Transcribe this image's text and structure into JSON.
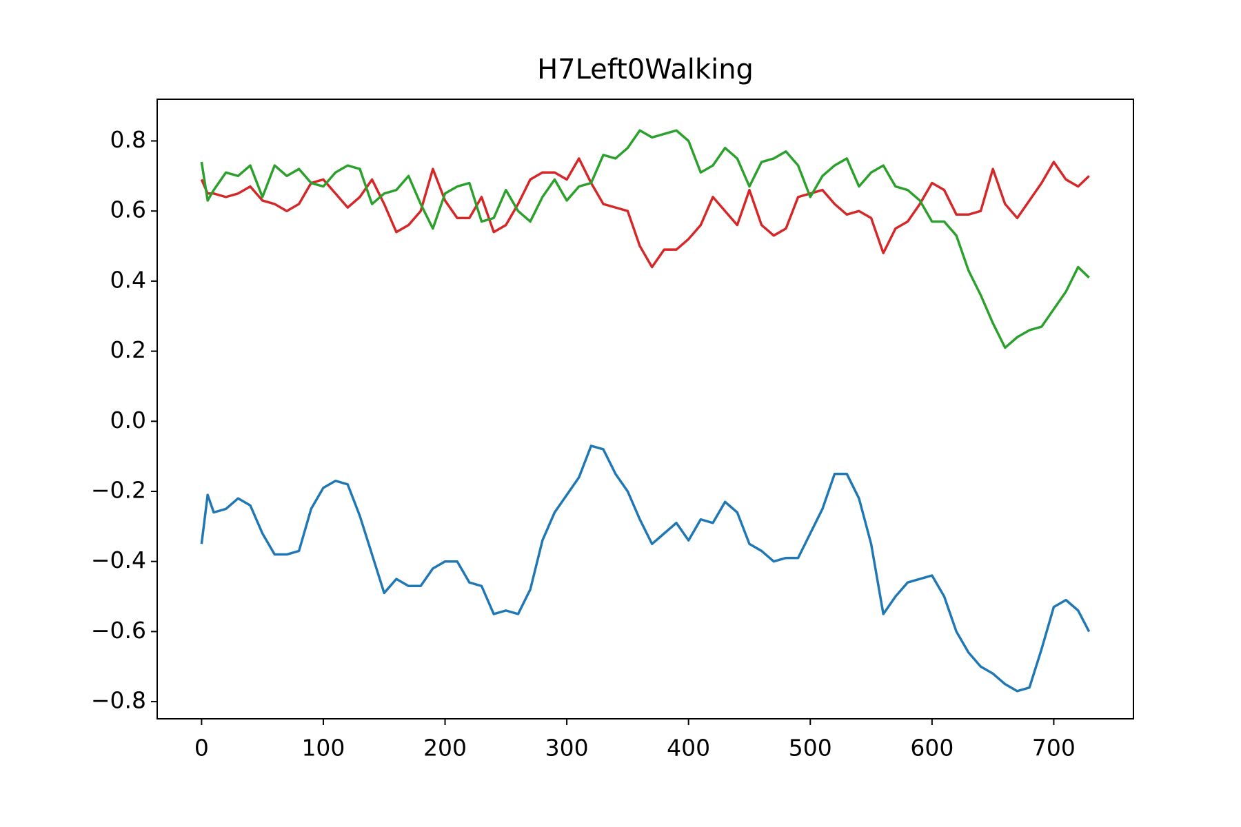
{
  "chart_data": {
    "type": "line",
    "title": "H7Left0Walking",
    "x": [
      0,
      5,
      10,
      20,
      30,
      40,
      50,
      60,
      70,
      80,
      90,
      100,
      110,
      120,
      130,
      140,
      150,
      160,
      170,
      180,
      190,
      200,
      210,
      220,
      230,
      240,
      250,
      260,
      270,
      280,
      290,
      300,
      310,
      320,
      330,
      340,
      350,
      360,
      370,
      380,
      390,
      400,
      410,
      420,
      430,
      440,
      450,
      460,
      470,
      480,
      490,
      500,
      510,
      520,
      530,
      540,
      550,
      560,
      570,
      580,
      590,
      600,
      610,
      620,
      630,
      640,
      650,
      660,
      670,
      680,
      690,
      700,
      710,
      720,
      729
    ],
    "series": [
      {
        "color": "#1f77b4",
        "values": [
          -0.35,
          -0.21,
          -0.26,
          -0.25,
          -0.22,
          -0.24,
          -0.32,
          -0.38,
          -0.38,
          -0.37,
          -0.25,
          -0.19,
          -0.17,
          -0.18,
          -0.27,
          -0.38,
          -0.49,
          -0.45,
          -0.47,
          -0.47,
          -0.42,
          -0.4,
          -0.4,
          -0.46,
          -0.47,
          -0.55,
          -0.54,
          -0.55,
          -0.48,
          -0.34,
          -0.26,
          -0.21,
          -0.16,
          -0.07,
          -0.08,
          -0.15,
          -0.2,
          -0.28,
          -0.35,
          -0.32,
          -0.29,
          -0.34,
          -0.28,
          -0.29,
          -0.23,
          -0.26,
          -0.35,
          -0.37,
          -0.4,
          -0.39,
          -0.39,
          -0.32,
          -0.25,
          -0.15,
          -0.15,
          -0.22,
          -0.35,
          -0.55,
          -0.5,
          -0.46,
          -0.45,
          -0.44,
          -0.5,
          -0.6,
          -0.66,
          -0.7,
          -0.72,
          -0.75,
          -0.77,
          -0.76,
          -0.65,
          -0.53,
          -0.51,
          -0.54,
          -0.6
        ]
      },
      {
        "color": "#d62728",
        "values": [
          0.69,
          0.65,
          0.65,
          0.64,
          0.65,
          0.67,
          0.63,
          0.62,
          0.6,
          0.62,
          0.68,
          0.69,
          0.65,
          0.61,
          0.64,
          0.69,
          0.62,
          0.54,
          0.56,
          0.6,
          0.72,
          0.63,
          0.58,
          0.58,
          0.64,
          0.54,
          0.56,
          0.62,
          0.69,
          0.71,
          0.71,
          0.69,
          0.75,
          0.68,
          0.62,
          0.61,
          0.6,
          0.5,
          0.44,
          0.49,
          0.49,
          0.52,
          0.56,
          0.64,
          0.6,
          0.56,
          0.66,
          0.56,
          0.53,
          0.55,
          0.64,
          0.65,
          0.66,
          0.62,
          0.59,
          0.6,
          0.58,
          0.48,
          0.55,
          0.57,
          0.62,
          0.68,
          0.66,
          0.59,
          0.59,
          0.6,
          0.72,
          0.62,
          0.58,
          0.63,
          0.68,
          0.74,
          0.69,
          0.67,
          0.7
        ]
      },
      {
        "color": "#2ca02c",
        "values": [
          0.74,
          0.63,
          0.66,
          0.71,
          0.7,
          0.73,
          0.64,
          0.73,
          0.7,
          0.72,
          0.68,
          0.67,
          0.71,
          0.73,
          0.72,
          0.62,
          0.65,
          0.66,
          0.7,
          0.62,
          0.55,
          0.65,
          0.67,
          0.68,
          0.57,
          0.58,
          0.66,
          0.6,
          0.57,
          0.64,
          0.69,
          0.63,
          0.67,
          0.68,
          0.76,
          0.75,
          0.78,
          0.83,
          0.81,
          0.82,
          0.83,
          0.8,
          0.71,
          0.73,
          0.78,
          0.75,
          0.67,
          0.74,
          0.75,
          0.77,
          0.73,
          0.64,
          0.7,
          0.73,
          0.75,
          0.67,
          0.71,
          0.73,
          0.67,
          0.66,
          0.63,
          0.57,
          0.57,
          0.53,
          0.43,
          0.36,
          0.28,
          0.21,
          0.24,
          0.26,
          0.27,
          0.32,
          0.37,
          0.44,
          0.41
        ]
      }
    ],
    "xlim": [
      -36.45,
      765.45
    ],
    "ylim": [
      -0.849,
      0.919
    ],
    "xticks": [
      0,
      100,
      200,
      300,
      400,
      500,
      600,
      700
    ],
    "yticks": [
      {
        "value": -0.8,
        "label": "−0.8"
      },
      {
        "value": -0.6,
        "label": "−0.6"
      },
      {
        "value": -0.4,
        "label": "−0.4"
      },
      {
        "value": -0.2,
        "label": "−0.2"
      },
      {
        "value": 0,
        "label": "0.0"
      },
      0.2,
      0.4,
      0.6,
      0.8
    ]
  }
}
